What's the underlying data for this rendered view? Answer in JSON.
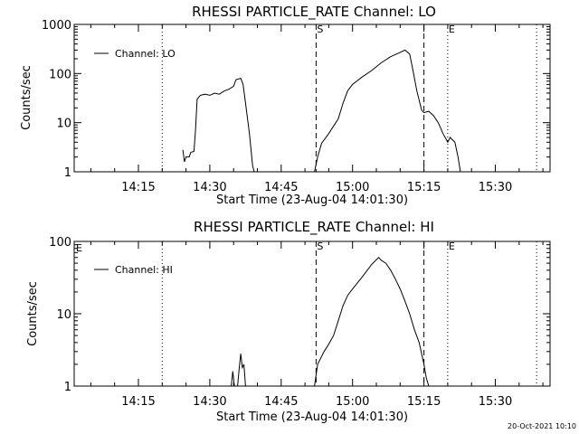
{
  "timestamp": "20-Oct-2021 10:10",
  "chart_data": [
    {
      "type": "line",
      "title": "RHESSI PARTICLE_RATE Channel: LO",
      "xlabel": "Start Time (23-Aug-04 14:01:30)",
      "ylabel": "Counts/sec",
      "y_scale": "log",
      "ylim": [
        1,
        1000
      ],
      "xlim": [
        "14:01:30",
        "15:41:30"
      ],
      "x_ticks": [
        "14:15",
        "14:30",
        "14:45",
        "15:00",
        "15:15",
        "15:30"
      ],
      "y_ticks": [
        "1",
        "10",
        "100",
        "1000"
      ],
      "legend": {
        "entries": [
          "Channel: LO"
        ],
        "placement": "top-left"
      },
      "markers": [
        {
          "time": "14:20:00",
          "style": "dotted",
          "label": ""
        },
        {
          "time": "14:52:20",
          "style": "dashed",
          "label": "S"
        },
        {
          "time": "15:15:00",
          "style": "dashed",
          "label": ""
        },
        {
          "time": "15:20:00",
          "style": "dotted",
          "label": "E"
        },
        {
          "time": "15:38:40",
          "style": "dotted",
          "label": ""
        }
      ],
      "series": [
        {
          "name": "Channel: LO",
          "segments": [
            [
              [
                "14:24:20",
                2.8
              ],
              [
                "14:24:40",
                1.6
              ],
              [
                "14:25:00",
                2.0
              ],
              [
                "14:25:40",
                2.0
              ],
              [
                "14:26:00",
                2.5
              ],
              [
                "14:26:40",
                2.6
              ],
              [
                "14:27:00",
                7
              ],
              [
                "14:27:20",
                30
              ],
              [
                "14:28:00",
                36
              ],
              [
                "14:29:00",
                38
              ],
              [
                "14:30:00",
                36
              ],
              [
                "14:31:00",
                40
              ],
              [
                "14:32:00",
                38
              ],
              [
                "14:33:00",
                44
              ],
              [
                "14:34:00",
                48
              ],
              [
                "14:35:00",
                55
              ],
              [
                "14:35:30",
                75
              ],
              [
                "14:36:30",
                80
              ],
              [
                "14:37:00",
                60
              ],
              [
                "14:37:30",
                25
              ],
              [
                "14:38:20",
                6
              ],
              [
                "14:39:00",
                1.3
              ],
              [
                "14:39:20",
                1
              ]
            ],
            [
              [
                "14:52:00",
                1
              ],
              [
                "14:52:40",
                2.0
              ],
              [
                "14:53:30",
                3.8
              ],
              [
                "14:55:00",
                6
              ],
              [
                "14:57:00",
                12
              ],
              [
                "14:58:00",
                25
              ],
              [
                "14:59:00",
                45
              ],
              [
                "15:00:00",
                60
              ],
              [
                "15:02:00",
                85
              ],
              [
                "15:04:00",
                115
              ],
              [
                "15:06:00",
                165
              ],
              [
                "15:08:00",
                220
              ],
              [
                "15:10:00",
                270
              ],
              [
                "15:11:00",
                300
              ],
              [
                "15:12:00",
                250
              ],
              [
                "15:12:40",
                120
              ],
              [
                "15:13:30",
                45
              ],
              [
                "15:14:30",
                18
              ],
              [
                "15:15:00",
                16
              ],
              [
                "15:16:00",
                17
              ],
              [
                "15:17:00",
                14
              ],
              [
                "15:18:00",
                10
              ],
              [
                "15:19:00",
                6
              ],
              [
                "15:20:00",
                4
              ],
              [
                "15:20:30",
                5
              ],
              [
                "15:21:30",
                4
              ],
              [
                "15:22:10",
                2
              ],
              [
                "15:22:40",
                1
              ]
            ]
          ]
        }
      ]
    },
    {
      "type": "line",
      "title": "RHESSI PARTICLE_RATE Channel: HI",
      "xlabel": "Start Time (23-Aug-04 14:01:30)",
      "ylabel": "Counts/sec",
      "y_scale": "log",
      "ylim": [
        1,
        100
      ],
      "xlim": [
        "14:01:30",
        "15:41:30"
      ],
      "x_ticks": [
        "14:15",
        "14:30",
        "14:45",
        "15:00",
        "15:15",
        "15:30"
      ],
      "y_ticks": [
        "1",
        "10",
        "100"
      ],
      "legend": {
        "entries": [
          "Channel: HI"
        ],
        "placement": "top-left"
      },
      "corner_label": "E",
      "markers": [
        {
          "time": "14:20:00",
          "style": "dotted",
          "label": ""
        },
        {
          "time": "14:52:20",
          "style": "dashed",
          "label": "S"
        },
        {
          "time": "15:15:00",
          "style": "dashed",
          "label": ""
        },
        {
          "time": "15:20:00",
          "style": "dotted",
          "label": "E"
        },
        {
          "time": "15:38:40",
          "style": "dotted",
          "label": ""
        }
      ],
      "series": [
        {
          "name": "Channel: HI",
          "segments": [
            [
              [
                "14:34:30",
                1
              ],
              [
                "14:34:50",
                1.6
              ],
              [
                "14:35:10",
                1
              ]
            ],
            [
              [
                "14:35:50",
                1
              ],
              [
                "14:36:10",
                1.7
              ],
              [
                "14:36:30",
                2.8
              ],
              [
                "14:36:50",
                1.8
              ],
              [
                "14:37:10",
                2.0
              ],
              [
                "14:37:30",
                1
              ]
            ],
            [
              [
                "14:52:00",
                1
              ],
              [
                "14:52:40",
                2.0
              ],
              [
                "14:54:00",
                3.0
              ],
              [
                "14:55:00",
                3.8
              ],
              [
                "14:56:00",
                5
              ],
              [
                "14:57:00",
                8
              ],
              [
                "14:58:00",
                13
              ],
              [
                "14:59:00",
                18
              ],
              [
                "15:00:00",
                22
              ],
              [
                "15:02:00",
                32
              ],
              [
                "15:04:00",
                48
              ],
              [
                "15:05:30",
                60
              ],
              [
                "15:06:00",
                55
              ],
              [
                "15:07:00",
                50
              ],
              [
                "15:08:00",
                40
              ],
              [
                "15:09:00",
                30
              ],
              [
                "15:10:00",
                22
              ],
              [
                "15:11:00",
                15
              ],
              [
                "15:12:00",
                10
              ],
              [
                "15:13:00",
                6
              ],
              [
                "15:14:00",
                4
              ],
              [
                "15:15:00",
                2
              ],
              [
                "15:15:30",
                1.3
              ],
              [
                "15:16:00",
                1
              ]
            ]
          ]
        }
      ]
    }
  ]
}
